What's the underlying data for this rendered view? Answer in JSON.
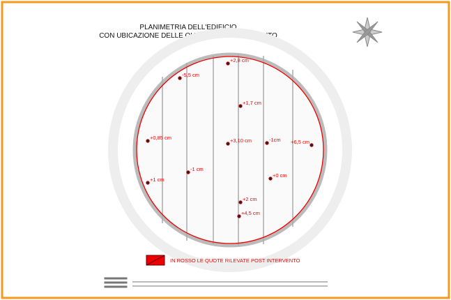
{
  "header": {
    "title": [
      "PLANIMETRIA DELL'EDIFICIO",
      "CON UBICAZIONE DELLE QUOTE POST INTERVENTO"
    ]
  },
  "points": [
    {
      "label": "+2,8 cm"
    },
    {
      "label": "-5,5 cm"
    },
    {
      "label": "+1,7 cm"
    },
    {
      "label": "+0,85 cm"
    },
    {
      "label": "+3,10 cm"
    },
    {
      "label": "-1cm"
    },
    {
      "label": "+6,5 cm"
    },
    {
      "label": "-1 cm"
    },
    {
      "label": "+1 cm"
    },
    {
      "label": "+0 cm"
    },
    {
      "label": "+2 cm"
    },
    {
      "label": "+4,5 cm"
    }
  ],
  "legend": {
    "text": "IN ROSSO LE QUOTE RILEVATE POST INTERVENTO"
  }
}
